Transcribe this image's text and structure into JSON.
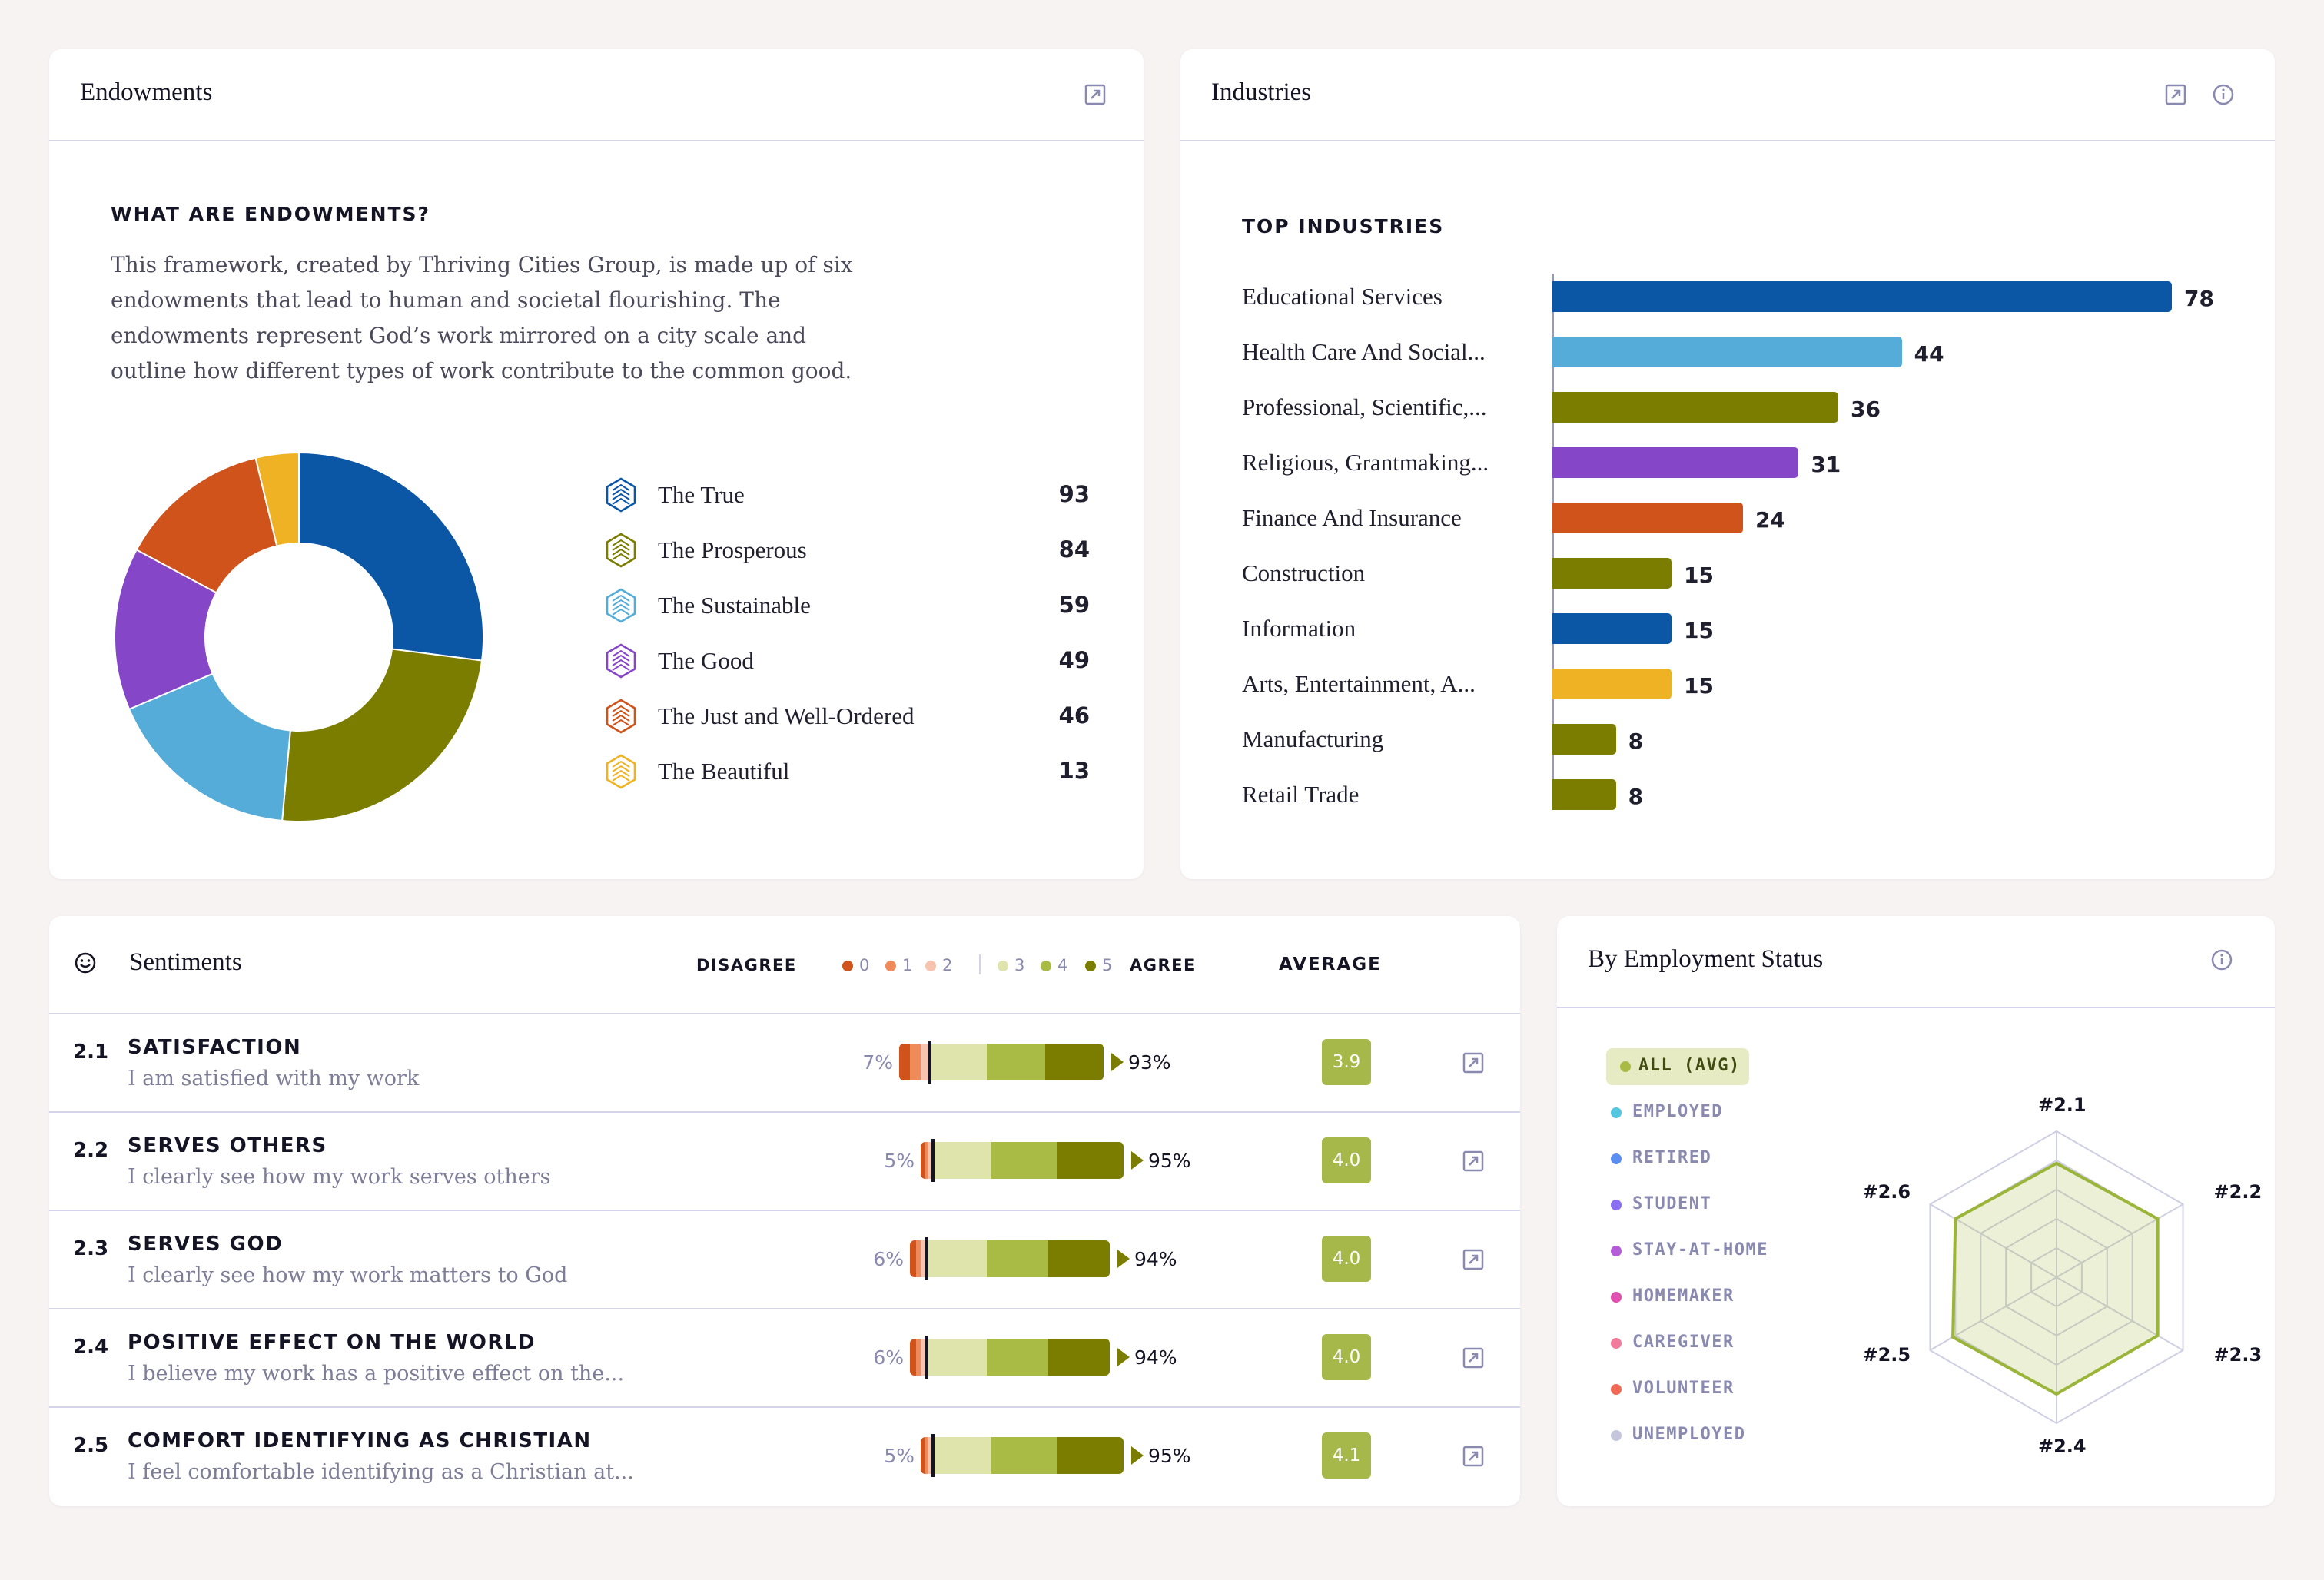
{
  "endowments": {
    "title": "Endowments",
    "heading": "WHAT ARE ENDOWMENTS?",
    "description": "This framework, created by Thriving Cities Group, is made up of six endowments that lead to human and societal flourishing. The endowments represent God’s work mirrored on a city scale and outline how different types of work contribute to the common good.",
    "items": [
      {
        "label": "The True",
        "value": "93",
        "color": "#0c56a6",
        "icon": "hex-true-icon"
      },
      {
        "label": "The Prosperous",
        "value": "84",
        "color": "#7b7d00",
        "icon": "hex-prosperous-icon"
      },
      {
        "label": "The Sustainable",
        "value": "59",
        "color": "#55acd9",
        "icon": "hex-sustainable-icon"
      },
      {
        "label": "The Good",
        "value": "49",
        "color": "#8646c8",
        "icon": "hex-good-icon"
      },
      {
        "label": "The Just and Well-Ordered",
        "value": "46",
        "color": "#cf531b",
        "icon": "hex-just-icon"
      },
      {
        "label": "The Beautiful",
        "value": "13",
        "color": "#efb224",
        "icon": "hex-beautiful-icon"
      }
    ]
  },
  "industries": {
    "title": "Industries",
    "heading": "TOP INDUSTRIES",
    "items": [
      {
        "label": "Educational Services",
        "value": "78",
        "color": "#0c56a6"
      },
      {
        "label": "Health Care And Social...",
        "value": "44",
        "color": "#55acd9"
      },
      {
        "label": "Professional, Scientific,...",
        "value": "36",
        "color": "#7b7d00"
      },
      {
        "label": "Religious, Grantmaking...",
        "value": "31",
        "color": "#8646c8"
      },
      {
        "label": "Finance And Insurance",
        "value": "24",
        "color": "#cf531b"
      },
      {
        "label": "Construction",
        "value": "15",
        "color": "#7b7d00"
      },
      {
        "label": "Information",
        "value": "15",
        "color": "#0c56a6"
      },
      {
        "label": "Arts, Entertainment, A...",
        "value": "15",
        "color": "#efb224"
      },
      {
        "label": "Manufacturing",
        "value": "8",
        "color": "#7b7d00"
      },
      {
        "label": "Retail Trade",
        "value": "8",
        "color": "#7b7d00"
      }
    ]
  },
  "sentiments": {
    "title": "Sentiments",
    "scale_disagree": "DISAGREE",
    "scale_agree": "AGREE",
    "average_label": "AVERAGE",
    "scale": [
      {
        "n": "0",
        "color": "#cf531b"
      },
      {
        "n": "1",
        "color": "#ef8a5a"
      },
      {
        "n": "2",
        "color": "#f6c3ae"
      },
      {
        "n": "3",
        "color": "#dfe4ad"
      },
      {
        "n": "4",
        "color": "#a9ba45"
      },
      {
        "n": "5",
        "color": "#7b7d00"
      }
    ],
    "rows": [
      {
        "num": "2.1",
        "title": "SATISFACTION",
        "desc": "I am satisfied with my work",
        "disagree": "7%",
        "agree": "93%",
        "average": "3.9"
      },
      {
        "num": "2.2",
        "title": "SERVES OTHERS",
        "desc": "I clearly see how my work serves others",
        "disagree": "5%",
        "agree": "95%",
        "average": "4.0"
      },
      {
        "num": "2.3",
        "title": "SERVES GOD",
        "desc": "I clearly see how my work matters to God",
        "disagree": "6%",
        "agree": "94%",
        "average": "4.0"
      },
      {
        "num": "2.4",
        "title": "POSITIVE EFFECT ON THE WORLD",
        "desc": "I believe my work has a positive effect on the...",
        "disagree": "6%",
        "agree": "94%",
        "average": "4.0"
      },
      {
        "num": "2.5",
        "title": "COMFORT IDENTIFYING AS CHRISTIAN",
        "desc": "I feel comfortable identifying as a Christian at...",
        "disagree": "5%",
        "agree": "95%",
        "average": "4.1"
      }
    ]
  },
  "employment": {
    "title": "By Employment Status",
    "filters": [
      {
        "label": "ALL (AVG)",
        "color": "#a9ba45",
        "active": true
      },
      {
        "label": "EMPLOYED",
        "color": "#55c6e0",
        "active": false
      },
      {
        "label": "RETIRED",
        "color": "#5b8ef0",
        "active": false
      },
      {
        "label": "STUDENT",
        "color": "#8a6ff0",
        "active": false
      },
      {
        "label": "STAY-AT-HOME",
        "color": "#b35ed8",
        "active": false
      },
      {
        "label": "HOMEMAKER",
        "color": "#e050b0",
        "active": false
      },
      {
        "label": "CAREGIVER",
        "color": "#f27a9a",
        "active": false
      },
      {
        "label": "VOLUNTEER",
        "color": "#ef6a55",
        "active": false
      },
      {
        "label": "UNEMPLOYED",
        "color": "#c5c5dd",
        "active": false
      }
    ],
    "radar_axes": [
      "#2.1",
      "#2.2",
      "#2.3",
      "#2.4",
      "#2.5",
      "#2.6"
    ],
    "radar_values": [
      3.9,
      4.0,
      4.0,
      4.0,
      4.1,
      4.0
    ],
    "radar_max": 5
  }
}
